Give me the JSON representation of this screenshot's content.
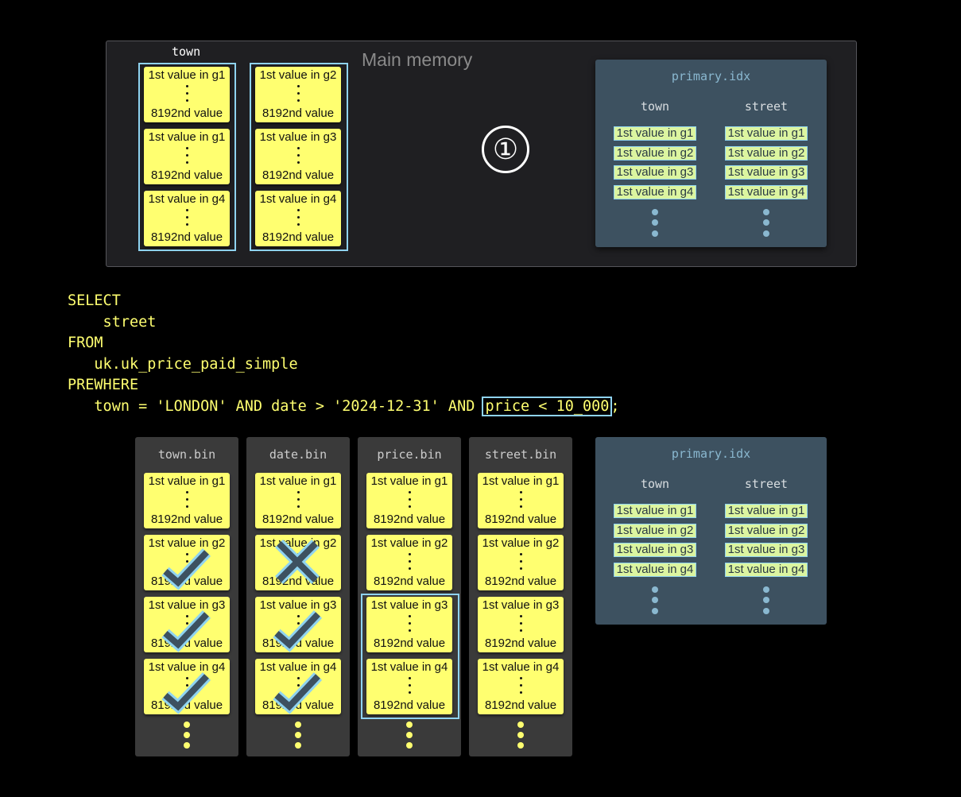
{
  "main_memory": {
    "title": "Main memory",
    "column_label": "town",
    "columns": [
      {
        "cards": [
          {
            "first": "1st value in g1",
            "last": "8192nd value"
          },
          {
            "first": "1st value in g1",
            "last": "8192nd value"
          },
          {
            "first": "1st value in g4",
            "last": "8192nd value"
          }
        ]
      },
      {
        "cards": [
          {
            "first": "1st value in g2",
            "last": "8192nd value"
          },
          {
            "first": "1st value in g3",
            "last": "8192nd value"
          },
          {
            "first": "1st value in g4",
            "last": "8192nd value"
          }
        ]
      }
    ],
    "step_marker": "①"
  },
  "primary_idx_top": {
    "title": "primary.idx",
    "columns": [
      {
        "label": "town",
        "items": [
          "1st value in g1",
          "1st value in g2",
          "1st value in g3",
          "1st value in g4"
        ]
      },
      {
        "label": "street",
        "items": [
          "1st value in g1",
          "1st value in g2",
          "1st value in g3",
          "1st value in g4"
        ]
      }
    ]
  },
  "sql": {
    "lines": [
      "SELECT",
      "    street",
      "FROM",
      "   uk.uk_price_paid_simple",
      "PREWHERE"
    ],
    "last_line_prefix": "   town = 'LONDON' AND date > '2024-12-31' AND ",
    "highlighted": "price < 10_000",
    "last_line_suffix": ";"
  },
  "bins": [
    {
      "title": "town.bin",
      "cards": [
        {
          "first": "1st value in g1",
          "last": "8192nd value",
          "mark": ""
        },
        {
          "first": "1st value in g2",
          "last": "8192nd value",
          "mark": "check"
        },
        {
          "first": "1st value in g3",
          "last": "8192nd value",
          "mark": "check"
        },
        {
          "first": "1st value in g4",
          "last": "8192nd value",
          "mark": "check"
        }
      ]
    },
    {
      "title": "date.bin",
      "cards": [
        {
          "first": "1st value in g1",
          "last": "8192nd value",
          "mark": ""
        },
        {
          "first": "1st value in g2",
          "last": "8192nd value",
          "mark": "cross"
        },
        {
          "first": "1st value in g3",
          "last": "8192nd value",
          "mark": "check"
        },
        {
          "first": "1st value in g4",
          "last": "8192nd value",
          "mark": "check"
        }
      ]
    },
    {
      "title": "price.bin",
      "cards": [
        {
          "first": "1st value in g1",
          "last": "8192nd value",
          "mark": ""
        },
        {
          "first": "1st value in g2",
          "last": "8192nd value",
          "mark": ""
        },
        {
          "first": "1st value in g3",
          "last": "8192nd value",
          "mark": ""
        },
        {
          "first": "1st value in g4",
          "last": "8192nd value",
          "mark": ""
        }
      ],
      "highlight_granules": [
        "g3",
        "g4"
      ]
    },
    {
      "title": "street.bin",
      "cards": [
        {
          "first": "1st value in g1",
          "last": "8192nd value",
          "mark": ""
        },
        {
          "first": "1st value in g2",
          "last": "8192nd value",
          "mark": ""
        },
        {
          "first": "1st value in g3",
          "last": "8192nd value",
          "mark": ""
        },
        {
          "first": "1st value in g4",
          "last": "8192nd value",
          "mark": ""
        }
      ]
    }
  ],
  "primary_idx_bottom": {
    "title": "primary.idx",
    "columns": [
      {
        "label": "town",
        "items": [
          "1st value in g1",
          "1st value in g2",
          "1st value in g3",
          "1st value in g4"
        ]
      },
      {
        "label": "street",
        "items": [
          "1st value in g1",
          "1st value in g2",
          "1st value in g3",
          "1st value in g4"
        ]
      }
    ]
  },
  "colors": {
    "card": "#ffff70",
    "highlight": "#8fd3f0",
    "index_panel": "#3d5160",
    "mark_fill": "#3d5160"
  }
}
